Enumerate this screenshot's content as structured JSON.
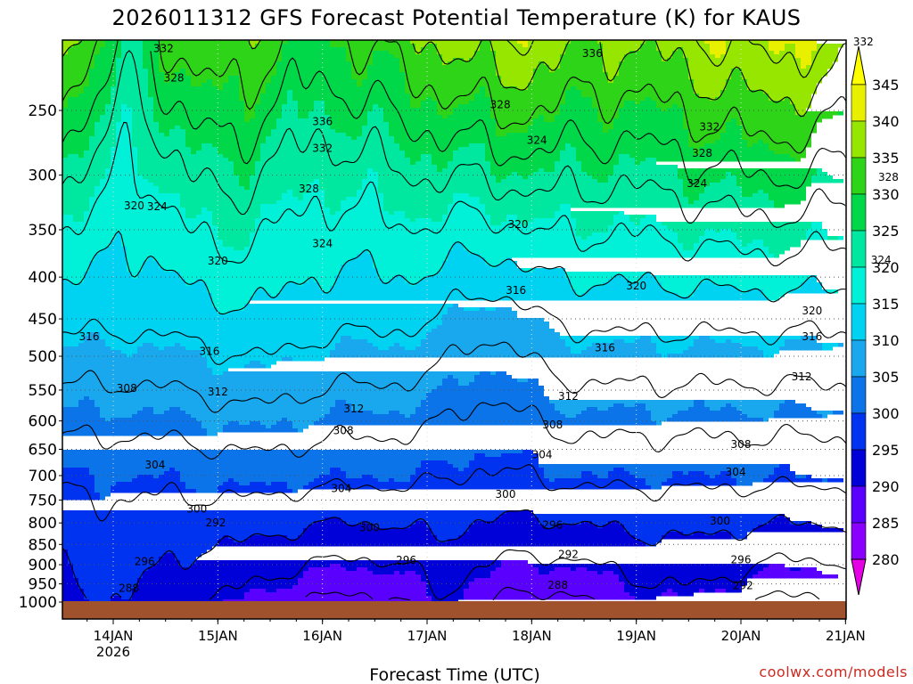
{
  "chart_data": {
    "type": "heatmap",
    "title": "2026011312 GFS Forecast Potential Temperature (K) for KAUS",
    "xlabel": "Forecast Time (UTC)",
    "ylabel": "",
    "credit": "coolwx.com/models",
    "x_ticks": [
      {
        "date": "2026-01-14",
        "label": "14JAN",
        "sublabel": "2026"
      },
      {
        "date": "2026-01-15",
        "label": "15JAN",
        "sublabel": ""
      },
      {
        "date": "2026-01-16",
        "label": "16JAN",
        "sublabel": ""
      },
      {
        "date": "2026-01-17",
        "label": "17JAN",
        "sublabel": ""
      },
      {
        "date": "2026-01-18",
        "label": "18JAN",
        "sublabel": ""
      },
      {
        "date": "2026-01-19",
        "label": "19JAN",
        "sublabel": ""
      },
      {
        "date": "2026-01-20",
        "label": "20JAN",
        "sublabel": ""
      },
      {
        "date": "2026-01-21",
        "label": "21JAN",
        "sublabel": ""
      }
    ],
    "xlim": [
      "2026-01-13 12Z",
      "2026-01-21 00Z"
    ],
    "y_ticks": [
      250,
      300,
      350,
      400,
      450,
      500,
      550,
      600,
      650,
      700,
      750,
      800,
      850,
      900,
      950,
      1000
    ],
    "ylim": [
      200,
      1000
    ],
    "yscale": "log",
    "grid": true,
    "colorbar": {
      "levels": [
        280,
        285,
        290,
        295,
        300,
        305,
        310,
        315,
        320,
        325,
        330,
        335,
        340,
        345
      ],
      "colors": [
        "#e600e6",
        "#b400f0",
        "#8a00ff",
        "#5a00ff",
        "#0000d8",
        "#0033f0",
        "#0a74e8",
        "#19a8ee",
        "#00d2f2",
        "#00f0d8",
        "#00e8a0",
        "#00d84a",
        "#2ed418",
        "#96e600",
        "#e8f000",
        "#ffff00"
      ],
      "tick_labels": [
        "280",
        "285",
        "290",
        "295",
        "300",
        "305",
        "310",
        "315",
        "320",
        "325",
        "330",
        "335",
        "340",
        "345"
      ]
    },
    "ground_color": "#a0522d",
    "contour_interval_K": 4,
    "contour_labels": [
      {
        "text": "332",
        "day": 0.48,
        "p": 210
      },
      {
        "text": "328",
        "day": 0.58,
        "p": 228
      },
      {
        "text": "336",
        "day": 2.0,
        "p": 258
      },
      {
        "text": "332",
        "day": 2.0,
        "p": 278
      },
      {
        "text": "328",
        "day": 1.87,
        "p": 312
      },
      {
        "text": "336",
        "day": 4.58,
        "p": 213
      },
      {
        "text": "328",
        "day": 3.7,
        "p": 246
      },
      {
        "text": "324",
        "day": 4.05,
        "p": 272
      },
      {
        "text": "332",
        "day": 5.7,
        "p": 262
      },
      {
        "text": "328",
        "day": 5.63,
        "p": 282
      },
      {
        "text": "332",
        "day": 7.17,
        "p": 206
      },
      {
        "text": "328",
        "day": 7.41,
        "p": 302
      },
      {
        "text": "324",
        "day": 5.58,
        "p": 307
      },
      {
        "text": "320",
        "day": 0.2,
        "p": 327
      },
      {
        "text": "324",
        "day": 0.42,
        "p": 328
      },
      {
        "text": "324",
        "day": 2.0,
        "p": 364
      },
      {
        "text": "320",
        "day": 1.0,
        "p": 382
      },
      {
        "text": "320",
        "day": 3.87,
        "p": 345
      },
      {
        "text": "324",
        "day": 7.34,
        "p": 381
      },
      {
        "text": "316",
        "day": 3.85,
        "p": 415
      },
      {
        "text": "320",
        "day": 5.0,
        "p": 410
      },
      {
        "text": "320",
        "day": 6.68,
        "p": 440
      },
      {
        "text": "316",
        "day": -0.23,
        "p": 473
      },
      {
        "text": "316",
        "day": 0.92,
        "p": 493
      },
      {
        "text": "316",
        "day": 4.7,
        "p": 488
      },
      {
        "text": "316",
        "day": 6.68,
        "p": 473
      },
      {
        "text": "308",
        "day": 0.13,
        "p": 547
      },
      {
        "text": "312",
        "day": 1.0,
        "p": 553
      },
      {
        "text": "312",
        "day": 2.3,
        "p": 580
      },
      {
        "text": "312",
        "day": 4.35,
        "p": 560
      },
      {
        "text": "312",
        "day": 6.58,
        "p": 530
      },
      {
        "text": "308",
        "day": 2.2,
        "p": 617
      },
      {
        "text": "308",
        "day": 4.2,
        "p": 607
      },
      {
        "text": "304",
        "day": 0.4,
        "p": 679
      },
      {
        "text": "304",
        "day": 2.18,
        "p": 726
      },
      {
        "text": "304",
        "day": 4.1,
        "p": 660
      },
      {
        "text": "308",
        "day": 6.0,
        "p": 641
      },
      {
        "text": "304",
        "day": 5.95,
        "p": 693
      },
      {
        "text": "300",
        "day": 0.8,
        "p": 769
      },
      {
        "text": "292",
        "day": 0.98,
        "p": 800
      },
      {
        "text": "300",
        "day": 2.45,
        "p": 811
      },
      {
        "text": "300",
        "day": 3.75,
        "p": 738
      },
      {
        "text": "296",
        "day": 4.2,
        "p": 805
      },
      {
        "text": "300",
        "day": 5.8,
        "p": 796
      },
      {
        "text": "296",
        "day": 0.3,
        "p": 892
      },
      {
        "text": "296",
        "day": 2.8,
        "p": 889
      },
      {
        "text": "292",
        "day": 4.35,
        "p": 874
      },
      {
        "text": "296",
        "day": 6.0,
        "p": 887
      },
      {
        "text": "292",
        "day": 6.02,
        "p": 955
      },
      {
        "text": "288",
        "day": 0.15,
        "p": 962
      },
      {
        "text": "288",
        "day": 4.25,
        "p": 954
      }
    ]
  }
}
